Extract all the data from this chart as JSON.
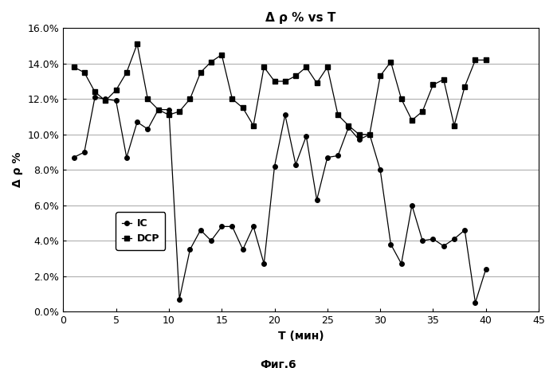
{
  "title": "Δ ρ % vs T",
  "xlabel": "T (мин)",
  "ylabel": "Δ ρ %",
  "caption": "Фиг.6",
  "xlim": [
    0,
    45
  ],
  "ylim": [
    0.0,
    0.16
  ],
  "yticks": [
    0.0,
    0.02,
    0.04,
    0.06,
    0.08,
    0.1,
    0.12,
    0.14,
    0.16
  ],
  "ytick_labels": [
    "0.0%",
    "2.0%",
    "4.0%",
    "6.0%",
    "8.0%",
    "10.0%",
    "12.0%",
    "14.0%",
    "16.0%"
  ],
  "xticks": [
    0,
    5,
    10,
    15,
    20,
    25,
    30,
    35,
    40,
    45
  ],
  "IC_x": [
    1,
    2,
    3,
    4,
    5,
    6,
    7,
    8,
    9,
    10,
    11,
    12,
    13,
    14,
    15,
    16,
    17,
    18,
    19,
    20,
    21,
    22,
    23,
    24,
    25,
    26,
    27,
    28,
    29,
    30,
    31,
    32,
    33,
    34,
    35,
    36,
    37,
    38,
    39,
    40
  ],
  "IC_y": [
    0.087,
    0.09,
    0.121,
    0.12,
    0.119,
    0.087,
    0.107,
    0.103,
    0.114,
    0.114,
    0.007,
    0.035,
    0.046,
    0.04,
    0.048,
    0.048,
    0.035,
    0.048,
    0.027,
    0.082,
    0.111,
    0.083,
    0.099,
    0.063,
    0.087,
    0.088,
    0.104,
    0.097,
    0.1,
    0.08,
    0.038,
    0.027,
    0.06,
    0.04,
    0.041,
    0.037,
    0.041,
    0.046,
    0.005,
    0.024
  ],
  "DCP_x": [
    1,
    2,
    3,
    4,
    5,
    6,
    7,
    8,
    9,
    10,
    11,
    12,
    13,
    14,
    15,
    16,
    17,
    18,
    19,
    20,
    21,
    22,
    23,
    24,
    25,
    26,
    27,
    28,
    29,
    30,
    31,
    32,
    33,
    34,
    35,
    36,
    37,
    38,
    39,
    40
  ],
  "DCP_y": [
    0.138,
    0.135,
    0.124,
    0.119,
    0.125,
    0.135,
    0.151,
    0.12,
    0.114,
    0.111,
    0.113,
    0.12,
    0.135,
    0.141,
    0.145,
    0.12,
    0.115,
    0.105,
    0.138,
    0.13,
    0.13,
    0.133,
    0.138,
    0.129,
    0.138,
    0.111,
    0.105,
    0.1,
    0.1,
    0.133,
    0.141,
    0.12,
    0.108,
    0.113,
    0.128,
    0.131,
    0.105,
    0.127,
    0.142,
    0.142
  ],
  "line_color": "#000000",
  "marker_IC": "o",
  "marker_DCP": "s",
  "marker_size_IC": 4,
  "marker_size_DCP": 4,
  "bg_color": "#ffffff",
  "grid_color": "#999999",
  "legend_labels": [
    "IC",
    "DCP"
  ],
  "title_fontsize": 11,
  "axis_label_fontsize": 10,
  "tick_fontsize": 9,
  "caption_fontsize": 10,
  "figwidth": 6.99,
  "figheight": 4.62,
  "dpi": 100
}
